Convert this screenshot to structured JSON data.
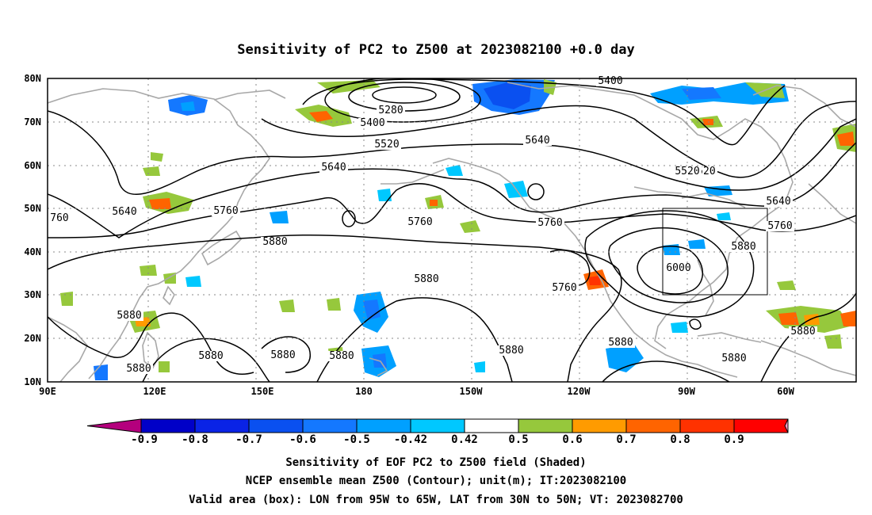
{
  "title": "Sensitivity of PC2 to Z500 at 2023082100 +0.0 day",
  "map": {
    "lon_labels": [
      "90E",
      "120E",
      "150E",
      "180",
      "150W",
      "120W",
      "90W",
      "60W"
    ],
    "lat_labels": [
      "80N",
      "70N",
      "60N",
      "50N",
      "40N",
      "30N",
      "20N",
      "10N"
    ],
    "lon_range": [
      "90E",
      "45W"
    ],
    "lat_range": [
      "10N",
      "80N"
    ],
    "grid": "dotted"
  },
  "contour_labels": [
    "5400",
    "5280",
    "5400",
    "5520",
    "5640",
    "5520",
    "5640",
    "5640",
    "5760",
    "5760",
    "5880",
    "5760",
    "5760",
    "5880",
    "5880",
    "5880",
    "5880",
    "5880",
    "5880",
    "5880",
    "5880",
    "5880",
    "5880",
    "6000",
    "5880",
    "5760",
    "5640",
    "5520",
    "5400",
    "760",
    "5760",
    "5880"
  ],
  "box": {
    "lon": [
      "95W",
      "65W"
    ],
    "lat": [
      "30N",
      "50N"
    ]
  },
  "colorbar": {
    "labels": [
      "-0.9",
      "-0.8",
      "-0.7",
      "-0.6",
      "-0.5",
      "-0.42",
      "0.42",
      "0.5",
      "0.6",
      "0.7",
      "0.8",
      "0.9"
    ],
    "colors": [
      "#0000c8",
      "#0a23e6",
      "#0a50f0",
      "#1478ff",
      "#00a0ff",
      "#00c8ff",
      "#ffffff",
      "#96c83c",
      "#ff9b00",
      "#ff6400",
      "#ff3200",
      "#ff0000"
    ],
    "under_color": "#b4007d",
    "over_color": "#ff9bc8"
  },
  "captions": [
    "Sensitivity of EOF PC2 to Z500 field (Shaded)",
    "NCEP ensemble mean Z500 (Contour); unit(m); IT:2023082100",
    "Valid area (box): LON from 95W to 65W, LAT from 30N to 50N; VT: 2023082700"
  ]
}
